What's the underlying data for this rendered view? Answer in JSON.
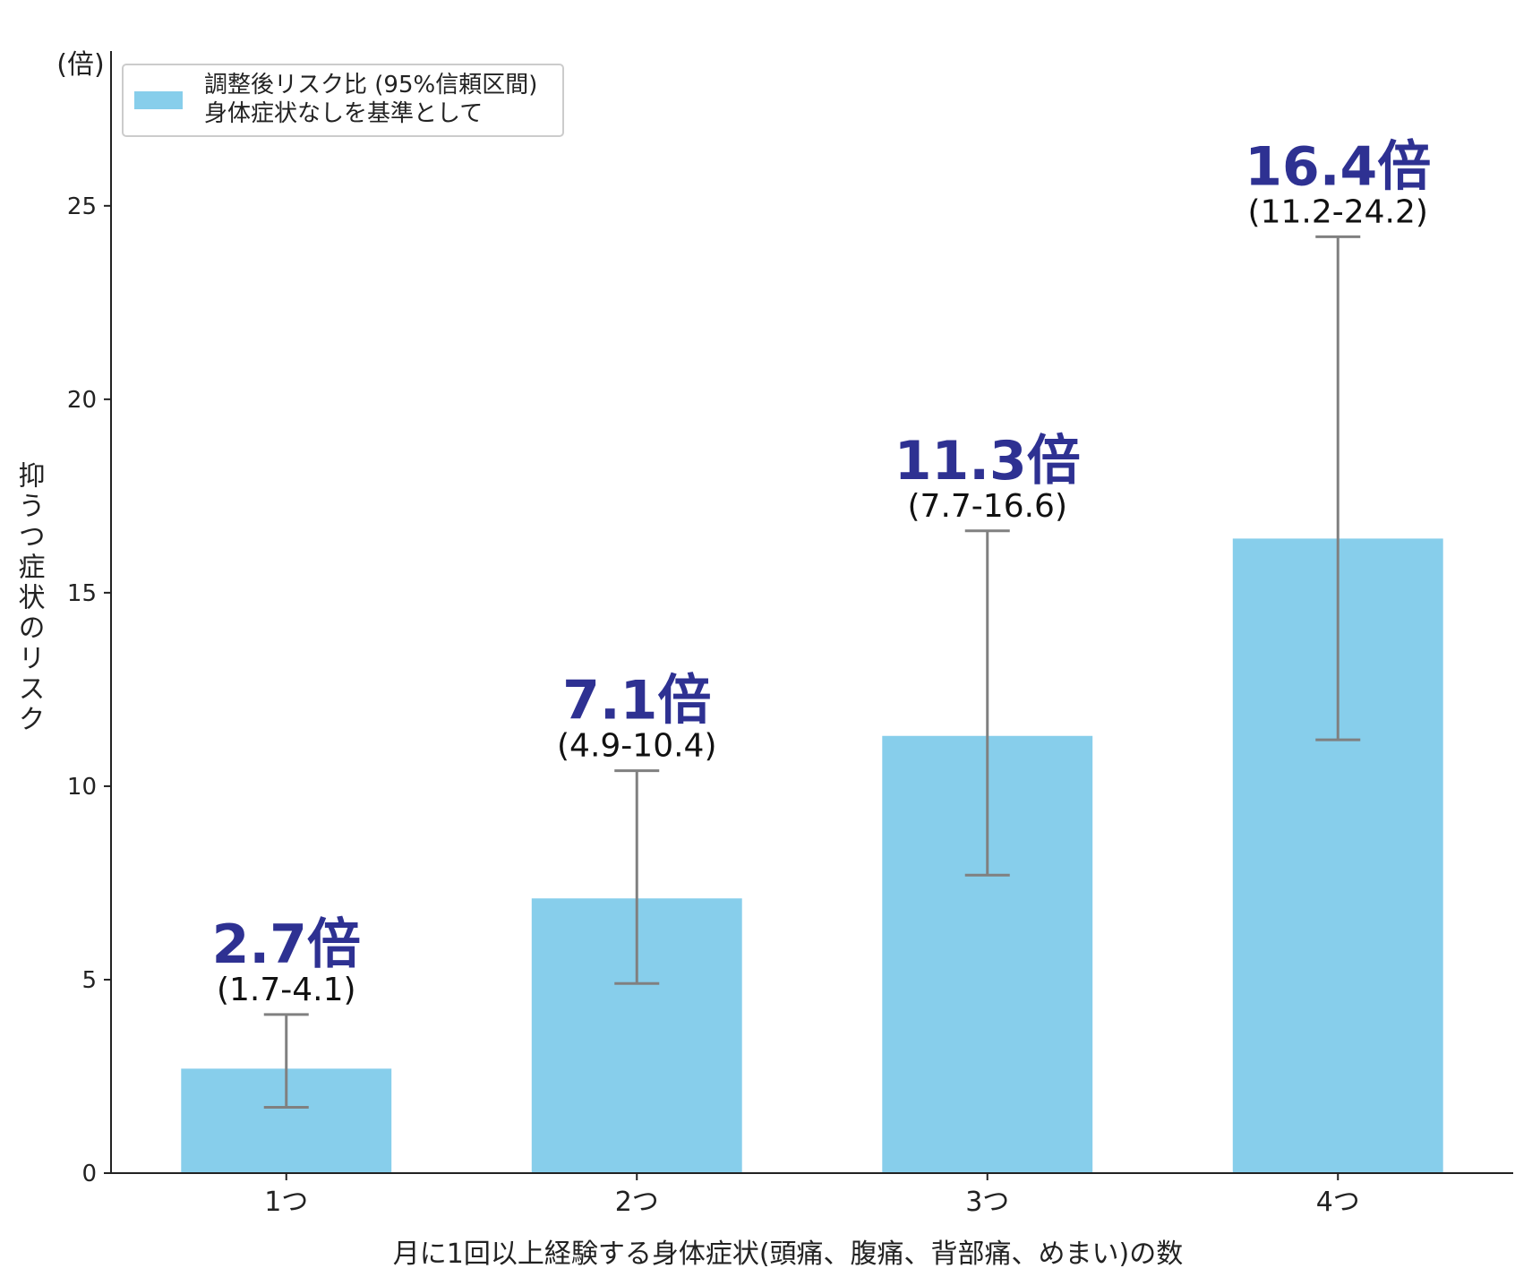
{
  "chart_data": {
    "type": "bar",
    "categories": [
      "1つ",
      "2つ",
      "3つ",
      "4つ"
    ],
    "values": [
      2.7,
      7.1,
      11.3,
      16.4
    ],
    "ci_lower": [
      1.7,
      4.9,
      7.7,
      11.2
    ],
    "ci_upper": [
      4.1,
      10.4,
      16.6,
      24.2
    ],
    "value_labels": [
      "2.7倍",
      "7.1倍",
      "11.3倍",
      "16.4倍"
    ],
    "ci_labels": [
      "(1.7-4.1)",
      "(4.9-10.4)",
      "(7.7-16.6)",
      "(11.2-24.2)"
    ],
    "unit_label": "(倍)",
    "ylabel": "抑うつ症状のリスク",
    "xlabel": "月に1回以上経験する身体症状(頭痛、腹痛、背部痛、めまい)の数",
    "ylim": [
      0,
      29
    ],
    "yticks": [
      0,
      5,
      10,
      15,
      20,
      25
    ],
    "legend": {
      "position": "top-left",
      "lines": [
        "調整後リスク比 (95%信頼区間)",
        "身体症状なしを基準として"
      ]
    },
    "grid": false,
    "colors": {
      "bar": "#87ceeb",
      "errorbar": "#808080",
      "value_label": "#2e3192",
      "axis": "#222222"
    }
  }
}
